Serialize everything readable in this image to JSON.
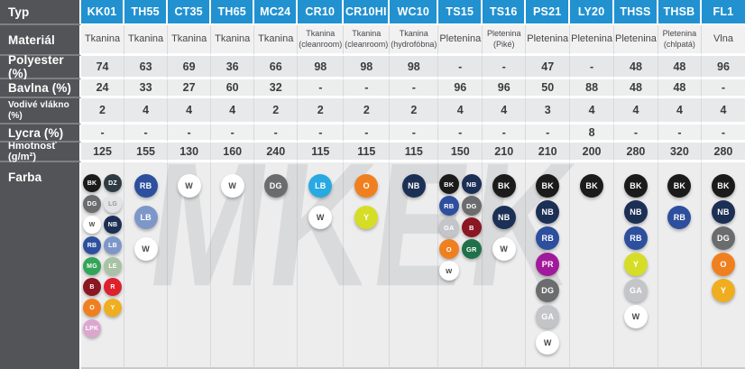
{
  "watermark": "MKEK",
  "table": {
    "row_labels": {
      "type": "Typ",
      "material": "Materiál",
      "polyester": "Polyester (%)",
      "cotton": "Bavlna (%)",
      "conductive": "Vodivé vlákno (%)",
      "lycra": "Lycra (%)",
      "weight": "Hmotnosť (g/m²)",
      "color": "Farba"
    },
    "columns": [
      {
        "code": "KK01",
        "material": "Tkanina",
        "polyester": "74",
        "cotton": "24",
        "conductive": "2",
        "lycra": "-",
        "weight": "125",
        "swatches": [
          [
            "BK",
            "DG",
            "W",
            "RB",
            "MG",
            "B",
            "O",
            "LPK"
          ],
          [
            "DZ",
            "LG",
            "NB",
            "LB",
            "LE",
            "R",
            "Y"
          ]
        ]
      },
      {
        "code": "TH55",
        "material": "Tkanina",
        "polyester": "63",
        "cotton": "33",
        "conductive": "4",
        "lycra": "-",
        "weight": "155",
        "swatches": [
          [
            "RB",
            "LB",
            "W"
          ]
        ]
      },
      {
        "code": "CT35",
        "material": "Tkanina",
        "polyester": "69",
        "cotton": "27",
        "conductive": "4",
        "lycra": "-",
        "weight": "130",
        "swatches": [
          [
            "W"
          ]
        ]
      },
      {
        "code": "TH65",
        "material": "Tkanina",
        "polyester": "36",
        "cotton": "60",
        "conductive": "4",
        "lycra": "-",
        "weight": "160",
        "swatches": [
          [
            "W"
          ]
        ]
      },
      {
        "code": "MC24",
        "material": "Tkanina",
        "polyester": "66",
        "cotton": "32",
        "conductive": "2",
        "lycra": "-",
        "weight": "240",
        "swatches": [
          [
            "DG"
          ]
        ]
      },
      {
        "code": "CR10",
        "material": "Tkanina (cleanroom)",
        "polyester": "98",
        "cotton": "-",
        "conductive": "2",
        "lycra": "-",
        "weight": "115",
        "swatches": [
          [
            "LB_CYAN",
            "W"
          ]
        ]
      },
      {
        "code": "CR10HI",
        "material": "Tkanina (cleanroom)",
        "polyester": "98",
        "cotton": "-",
        "conductive": "2",
        "lycra": "-",
        "weight": "115",
        "swatches": [
          [
            "O",
            "Y_LIME"
          ]
        ]
      },
      {
        "code": "WC10",
        "material": "Tkanina (hydrofóbna)",
        "polyester": "98",
        "cotton": "-",
        "conductive": "2",
        "lycra": "-",
        "weight": "115",
        "swatches": [
          [
            "NB"
          ]
        ]
      },
      {
        "code": "TS15",
        "material": "Pletenina",
        "polyester": "-",
        "cotton": "96",
        "conductive": "4",
        "lycra": "-",
        "weight": "150",
        "swatches": [
          [
            "BK",
            "RB",
            "GA",
            "O",
            "W"
          ],
          [
            "NB",
            "DG",
            "B",
            "GR"
          ]
        ]
      },
      {
        "code": "TS16",
        "material": "Pletenina (Piké)",
        "polyester": "-",
        "cotton": "96",
        "conductive": "4",
        "lycra": "-",
        "weight": "210",
        "swatches": [
          [
            "BK",
            "NB",
            "W"
          ]
        ]
      },
      {
        "code": "PS21",
        "material": "Pletenina",
        "polyester": "47",
        "cotton": "50",
        "conductive": "3",
        "lycra": "-",
        "weight": "210",
        "swatches": [
          [
            "BK",
            "NB",
            "RB",
            "PR",
            "DG",
            "GA",
            "W"
          ]
        ]
      },
      {
        "code": "LY20",
        "material": "Pletenina",
        "polyester": "-",
        "cotton": "88",
        "conductive": "4",
        "lycra": "8",
        "weight": "200",
        "swatches": [
          [
            "BK"
          ]
        ]
      },
      {
        "code": "THSS",
        "material": "Pletenina",
        "polyester": "48",
        "cotton": "48",
        "conductive": "4",
        "lycra": "-",
        "weight": "280",
        "swatches": [
          [
            "BK",
            "NB",
            "RB",
            "Y_LIME",
            "GA",
            "W"
          ]
        ]
      },
      {
        "code": "THSB",
        "material": "Pletenina (chlpatá)",
        "polyester": "48",
        "cotton": "48",
        "conductive": "4",
        "lycra": "-",
        "weight": "320",
        "swatches": [
          [
            "BK",
            "RB"
          ]
        ]
      },
      {
        "code": "FL1",
        "material": "Vlna",
        "polyester": "96",
        "cotton": "-",
        "conductive": "4",
        "lycra": "-",
        "weight": "280",
        "swatches": [
          [
            "BK",
            "NB",
            "DG",
            "O",
            "Y"
          ]
        ]
      }
    ]
  },
  "palette": {
    "BK": {
      "label": "BK",
      "bg": "#1b1b1b",
      "fg": "#ffffff"
    },
    "DZ": {
      "label": "DZ",
      "bg": "#2d3c43",
      "fg": "#ffffff"
    },
    "DG": {
      "label": "DG",
      "bg": "#6b6c6e",
      "fg": "#ffffff"
    },
    "LG": {
      "label": "LG",
      "bg": "#e3e4e5",
      "fg": "#96979a"
    },
    "W": {
      "label": "W",
      "bg": "#ffffff",
      "fg": "#45474a"
    },
    "NB": {
      "label": "NB",
      "bg": "#1c2f55",
      "fg": "#ffffff"
    },
    "RB": {
      "label": "RB",
      "bg": "#2d4f9e",
      "fg": "#ffffff"
    },
    "LB": {
      "label": "LB",
      "bg": "#7e97c9",
      "fg": "#ffffff"
    },
    "LB_CYAN": {
      "label": "LB",
      "bg": "#29a9e1",
      "fg": "#ffffff"
    },
    "MG": {
      "label": "MG",
      "bg": "#34a457",
      "fg": "#ffffff"
    },
    "LE": {
      "label": "LE",
      "bg": "#a9c2a3",
      "fg": "#ffffff"
    },
    "B": {
      "label": "B",
      "bg": "#8a1722",
      "fg": "#ffffff"
    },
    "R": {
      "label": "R",
      "bg": "#de202c",
      "fg": "#ffffff"
    },
    "O": {
      "label": "O",
      "bg": "#f0801f",
      "fg": "#ffffff"
    },
    "Y": {
      "label": "Y",
      "bg": "#efae20",
      "fg": "#ffffff"
    },
    "Y_LIME": {
      "label": "Y",
      "bg": "#d6dd26",
      "fg": "#ffffff"
    },
    "LPK": {
      "label": "LPK",
      "bg": "#dca6cf",
      "fg": "#ffffff"
    },
    "GA": {
      "label": "GA",
      "bg": "#c4c5c8",
      "fg": "#ffffff"
    },
    "GR": {
      "label": "GR",
      "bg": "#20714a",
      "fg": "#ffffff"
    },
    "PR": {
      "label": "PR",
      "bg": "#a21a9c",
      "fg": "#ffffff"
    }
  }
}
